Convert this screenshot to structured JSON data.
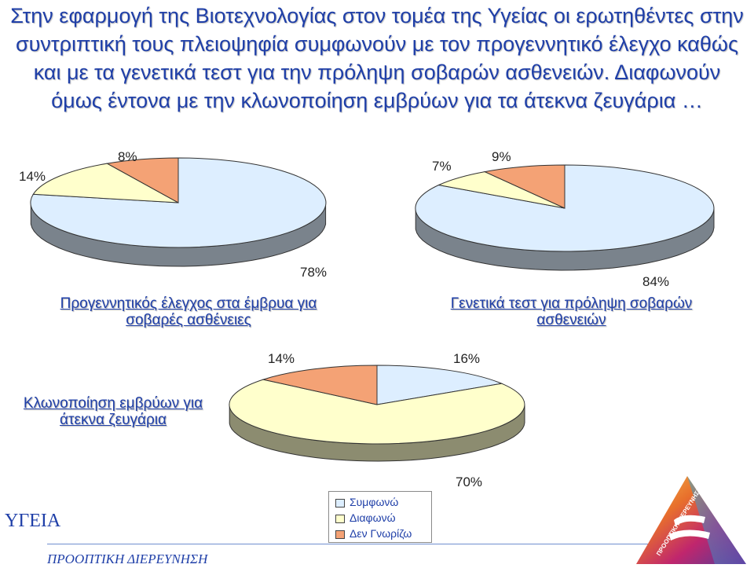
{
  "title": "Στην εφαρμογή της Βιοτεχνολογίας στον τομέα της Υγείας οι ερωτηθέντες στην συντριπτική τους πλειοψηφία συμφωνούν με τον προγεννητικό έλεγχο καθώς και με τα γενετικά τεστ για την πρόληψη σοβαρών ασθενειών. Διαφωνούν όμως έντονα με την κλωνοποίηση εμβρύων για τα άτεκνα ζευγάρια …",
  "legend": [
    {
      "label": "Συμφωνώ",
      "color": "#ddeeff"
    },
    {
      "label": "Διαφωνώ",
      "color": "#ffffcc"
    },
    {
      "label": "Δεν Γνωρίζω",
      "color": "#f4a275"
    }
  ],
  "chart_data": [
    {
      "type": "pie",
      "title": "Προγεννητικός έλεγχος στα έμβρυα για σοβαρές ασθένειες",
      "categories": [
        "Συμφωνώ",
        "Διαφωνώ",
        "Δεν Γνωρίζω"
      ],
      "values": [
        78,
        14,
        8
      ],
      "labels": [
        "78%",
        "14%",
        "8%"
      ]
    },
    {
      "type": "pie",
      "title": "Γενετικά τεστ για πρόληψη σοβαρών ασθενειών",
      "categories": [
        "Συμφωνώ",
        "Διαφωνώ",
        "Δεν Γνωρίζω"
      ],
      "values": [
        84,
        7,
        9
      ],
      "labels": [
        "84%",
        "7%",
        "9%"
      ]
    },
    {
      "type": "pie",
      "title": "Κλωνοποίηση εμβρύων για άτεκνα ζευγάρια",
      "categories": [
        "Συμφωνώ",
        "Διαφωνώ",
        "Δεν Γνωρίζω"
      ],
      "values": [
        16,
        70,
        14
      ],
      "labels": [
        "16%",
        "70%",
        "14%"
      ]
    }
  ],
  "footer": {
    "left": "ΥΓΕΙΑ",
    "bottom": "ΠΡΟΟΠΤΙΚΗ ΔΙΕΡΕΥΝΗΣΗ",
    "logo_text": "ΠΡΟΟΠΤΙΚΗ ΔΙΕΡΕΥΝΗΣΗ"
  }
}
